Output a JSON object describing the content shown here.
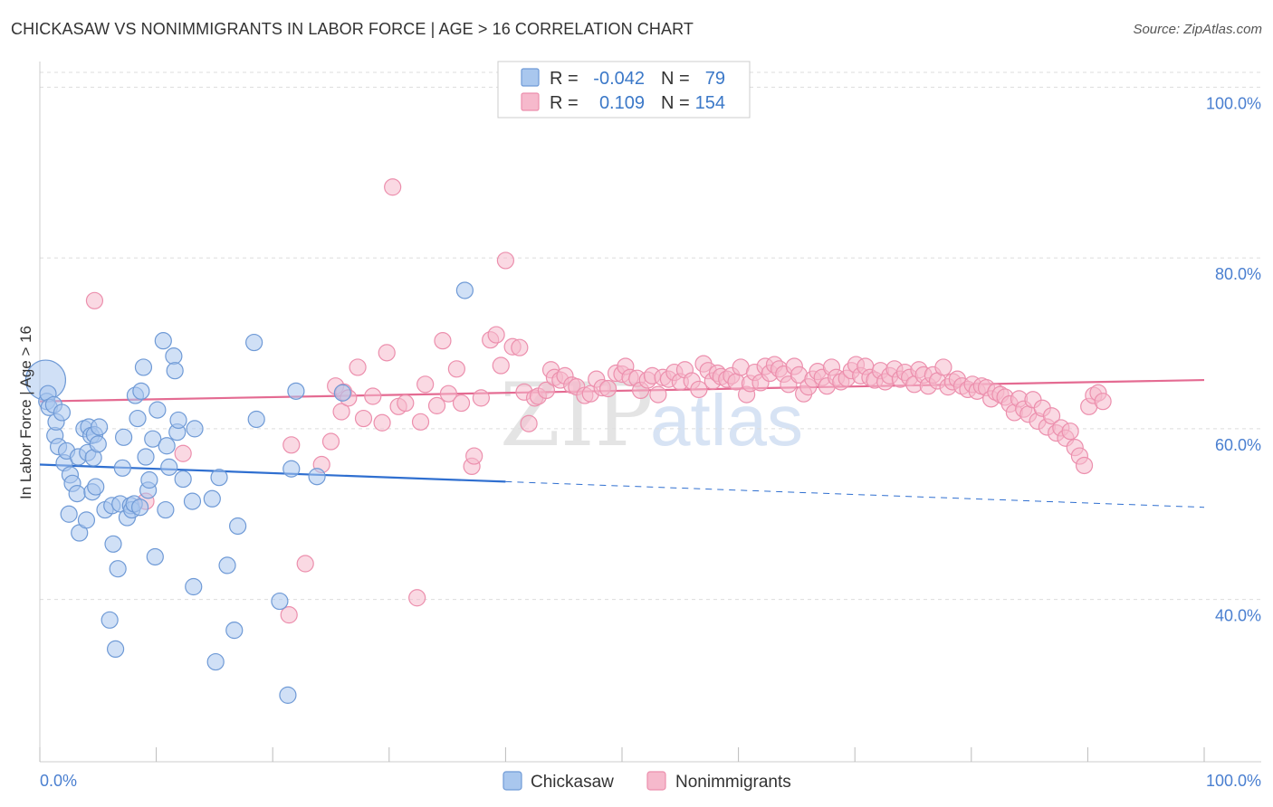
{
  "title": "CHICKASAW VS NONIMMIGRANTS IN LABOR FORCE | AGE > 16 CORRELATION CHART",
  "source": "Source: ZipAtlas.com",
  "watermark": {
    "zip": "ZIP",
    "atlas": "atlas"
  },
  "colors": {
    "blue_fill": "#a9c7ee",
    "blue_stroke": "#6f9ad6",
    "blue_line": "#2f6fd0",
    "pink_fill": "#f6b9cc",
    "pink_stroke": "#ec8fad",
    "pink_line": "#e46b92",
    "axis_text": "#4a7fd0",
    "grid": "#dddddd"
  },
  "legend": {
    "rows": [
      {
        "r_label": "R =",
        "r_value": "-0.042",
        "n_label": "N =",
        "n_value": "79",
        "series": "blue"
      },
      {
        "r_label": "R =",
        "r_value": "0.109",
        "n_label": "N =",
        "n_value": "154",
        "series": "pink"
      }
    ]
  },
  "chart_data": {
    "type": "scatter",
    "ylabel": "In Labor Force | Age > 16",
    "xlabel": "",
    "xlim": [
      0,
      100
    ],
    "ylim": [
      21,
      103
    ],
    "x_tick_labels": {
      "left": "0.0%",
      "right": "100.0%"
    },
    "y_ticks": [
      {
        "value": 40,
        "label": "40.0%"
      },
      {
        "value": 60,
        "label": "60.0%"
      },
      {
        "value": 80,
        "label": "80.0%"
      },
      {
        "value": 100,
        "label": "100.0%"
      }
    ],
    "grid": true,
    "series": [
      {
        "name": "Chickasaw",
        "color": "blue",
        "trend": {
          "x0": 0,
          "y0": 55.8,
          "x1": 40,
          "y1": 53.8,
          "dash_to_x": 100,
          "dash_to_y": 50.8
        },
        "points": [
          [
            0.5,
            65.7
          ],
          [
            0.6,
            63.2
          ],
          [
            0.7,
            64.1
          ],
          [
            0.8,
            62.5
          ],
          [
            1.2,
            62.8
          ],
          [
            1.3,
            59.2
          ],
          [
            1.4,
            60.8
          ],
          [
            1.6,
            57.9
          ],
          [
            1.9,
            61.9
          ],
          [
            2.1,
            56.0
          ],
          [
            2.3,
            57.4
          ],
          [
            2.5,
            50.0
          ],
          [
            2.6,
            54.6
          ],
          [
            2.8,
            53.6
          ],
          [
            3.2,
            52.4
          ],
          [
            3.3,
            56.7
          ],
          [
            3.4,
            47.8
          ],
          [
            3.8,
            60.0
          ],
          [
            4.0,
            49.3
          ],
          [
            4.1,
            57.2
          ],
          [
            4.2,
            60.2
          ],
          [
            4.4,
            59.2
          ],
          [
            4.5,
            52.6
          ],
          [
            4.6,
            56.6
          ],
          [
            4.7,
            59.3
          ],
          [
            4.8,
            53.2
          ],
          [
            5.0,
            58.2
          ],
          [
            5.1,
            60.2
          ],
          [
            5.6,
            50.5
          ],
          [
            6.0,
            37.6
          ],
          [
            6.2,
            51.0
          ],
          [
            6.3,
            46.5
          ],
          [
            6.5,
            34.2
          ],
          [
            6.7,
            43.6
          ],
          [
            6.9,
            51.2
          ],
          [
            7.1,
            55.4
          ],
          [
            7.2,
            59.0
          ],
          [
            7.5,
            49.6
          ],
          [
            7.8,
            51.0
          ],
          [
            7.9,
            50.5
          ],
          [
            8.1,
            51.2
          ],
          [
            8.2,
            63.9
          ],
          [
            8.4,
            61.2
          ],
          [
            8.6,
            50.8
          ],
          [
            8.7,
            64.4
          ],
          [
            8.9,
            67.2
          ],
          [
            9.1,
            56.7
          ],
          [
            9.3,
            52.8
          ],
          [
            9.4,
            54.0
          ],
          [
            9.7,
            58.8
          ],
          [
            9.9,
            45.0
          ],
          [
            10.1,
            62.2
          ],
          [
            10.6,
            70.3
          ],
          [
            10.8,
            50.5
          ],
          [
            10.9,
            58.0
          ],
          [
            11.1,
            55.5
          ],
          [
            11.5,
            68.5
          ],
          [
            11.6,
            66.8
          ],
          [
            11.8,
            59.6
          ],
          [
            11.9,
            61.0
          ],
          [
            12.3,
            54.1
          ],
          [
            13.1,
            51.5
          ],
          [
            13.2,
            41.5
          ],
          [
            13.3,
            60.0
          ],
          [
            14.8,
            51.8
          ],
          [
            15.1,
            32.7
          ],
          [
            15.4,
            54.3
          ],
          [
            16.1,
            44.0
          ],
          [
            16.7,
            36.4
          ],
          [
            17.0,
            48.6
          ],
          [
            18.4,
            70.1
          ],
          [
            18.6,
            61.1
          ],
          [
            20.6,
            39.8
          ],
          [
            21.3,
            28.8
          ],
          [
            21.6,
            55.3
          ],
          [
            22.0,
            64.4
          ],
          [
            23.8,
            54.4
          ],
          [
            26.0,
            64.2
          ],
          [
            36.5,
            76.2
          ]
        ]
      },
      {
        "name": "Nonimmigrants",
        "color": "pink",
        "trend": {
          "x0": 0,
          "y0": 63.2,
          "x1": 100,
          "y1": 65.7
        },
        "points": [
          [
            4.7,
            75.0
          ],
          [
            9.1,
            51.5
          ],
          [
            12.3,
            57.1
          ],
          [
            21.4,
            38.2
          ],
          [
            21.6,
            58.1
          ],
          [
            22.8,
            44.2
          ],
          [
            24.2,
            55.8
          ],
          [
            25.0,
            58.5
          ],
          [
            25.4,
            65.0
          ],
          [
            25.9,
            62.0
          ],
          [
            26.1,
            64.3
          ],
          [
            26.5,
            63.6
          ],
          [
            27.3,
            67.2
          ],
          [
            27.8,
            61.2
          ],
          [
            28.6,
            63.8
          ],
          [
            29.4,
            60.7
          ],
          [
            29.8,
            68.9
          ],
          [
            30.3,
            88.3
          ],
          [
            30.8,
            62.6
          ],
          [
            31.4,
            63.0
          ],
          [
            32.4,
            40.2
          ],
          [
            32.7,
            60.8
          ],
          [
            33.1,
            65.2
          ],
          [
            34.1,
            62.7
          ],
          [
            34.6,
            70.3
          ],
          [
            35.1,
            64.1
          ],
          [
            35.8,
            67.0
          ],
          [
            36.2,
            63.0
          ],
          [
            37.1,
            55.6
          ],
          [
            37.3,
            56.8
          ],
          [
            37.9,
            63.6
          ],
          [
            38.7,
            70.4
          ],
          [
            39.2,
            71.0
          ],
          [
            39.6,
            67.4
          ],
          [
            40.0,
            79.7
          ],
          [
            40.6,
            69.6
          ],
          [
            41.2,
            69.5
          ],
          [
            41.6,
            64.3
          ],
          [
            42.0,
            60.6
          ],
          [
            42.5,
            63.6
          ],
          [
            42.8,
            63.8
          ],
          [
            43.5,
            64.5
          ],
          [
            43.9,
            66.9
          ],
          [
            44.2,
            66.0
          ],
          [
            44.7,
            65.7
          ],
          [
            45.1,
            66.2
          ],
          [
            45.7,
            65.1
          ],
          [
            46.1,
            64.9
          ],
          [
            46.8,
            63.9
          ],
          [
            47.3,
            64.1
          ],
          [
            47.8,
            65.8
          ],
          [
            48.3,
            64.8
          ],
          [
            48.8,
            64.7
          ],
          [
            49.5,
            66.5
          ],
          [
            50.0,
            66.4
          ],
          [
            50.3,
            67.3
          ],
          [
            50.7,
            66.0
          ],
          [
            51.3,
            65.9
          ],
          [
            51.6,
            64.5
          ],
          [
            52.2,
            65.7
          ],
          [
            52.6,
            66.2
          ],
          [
            53.1,
            64.0
          ],
          [
            53.5,
            66.0
          ],
          [
            54.0,
            65.8
          ],
          [
            54.5,
            66.6
          ],
          [
            55.0,
            65.5
          ],
          [
            55.4,
            66.9
          ],
          [
            56.0,
            65.6
          ],
          [
            56.6,
            64.6
          ],
          [
            57.0,
            67.6
          ],
          [
            57.4,
            66.8
          ],
          [
            57.8,
            65.6
          ],
          [
            58.2,
            66.5
          ],
          [
            58.5,
            66.1
          ],
          [
            59.0,
            65.8
          ],
          [
            59.4,
            66.2
          ],
          [
            59.8,
            65.5
          ],
          [
            60.2,
            67.2
          ],
          [
            60.7,
            64.0
          ],
          [
            61.0,
            65.3
          ],
          [
            61.4,
            66.6
          ],
          [
            61.9,
            65.4
          ],
          [
            62.3,
            67.3
          ],
          [
            62.7,
            66.5
          ],
          [
            63.1,
            67.5
          ],
          [
            63.5,
            67.0
          ],
          [
            63.9,
            66.4
          ],
          [
            64.3,
            65.2
          ],
          [
            64.8,
            67.3
          ],
          [
            65.2,
            66.3
          ],
          [
            65.6,
            64.1
          ],
          [
            66.0,
            64.9
          ],
          [
            66.4,
            65.8
          ],
          [
            66.8,
            66.7
          ],
          [
            67.2,
            66.0
          ],
          [
            67.6,
            65.0
          ],
          [
            68.0,
            67.2
          ],
          [
            68.4,
            66.0
          ],
          [
            68.8,
            65.5
          ],
          [
            69.3,
            65.9
          ],
          [
            69.7,
            66.8
          ],
          [
            70.1,
            67.5
          ],
          [
            70.5,
            66.2
          ],
          [
            70.9,
            67.3
          ],
          [
            71.3,
            66.0
          ],
          [
            71.7,
            65.7
          ],
          [
            72.2,
            66.8
          ],
          [
            72.6,
            65.5
          ],
          [
            73.0,
            66.2
          ],
          [
            73.4,
            67.0
          ],
          [
            73.9,
            65.8
          ],
          [
            74.3,
            66.6
          ],
          [
            74.7,
            66.0
          ],
          [
            75.1,
            65.2
          ],
          [
            75.5,
            66.9
          ],
          [
            75.9,
            66.3
          ],
          [
            76.3,
            65.0
          ],
          [
            76.7,
            66.3
          ],
          [
            77.1,
            65.6
          ],
          [
            77.6,
            67.2
          ],
          [
            78.0,
            64.9
          ],
          [
            78.4,
            65.5
          ],
          [
            78.8,
            65.8
          ],
          [
            79.2,
            65.0
          ],
          [
            79.7,
            64.6
          ],
          [
            80.1,
            65.2
          ],
          [
            80.5,
            64.4
          ],
          [
            80.9,
            65.0
          ],
          [
            81.3,
            64.8
          ],
          [
            81.7,
            63.5
          ],
          [
            82.1,
            64.3
          ],
          [
            82.5,
            64.0
          ],
          [
            82.9,
            63.7
          ],
          [
            83.3,
            62.9
          ],
          [
            83.7,
            61.9
          ],
          [
            84.1,
            63.5
          ],
          [
            84.5,
            62.3
          ],
          [
            84.9,
            61.7
          ],
          [
            85.3,
            63.4
          ],
          [
            85.7,
            60.9
          ],
          [
            86.1,
            62.4
          ],
          [
            86.5,
            60.2
          ],
          [
            86.9,
            61.5
          ],
          [
            87.3,
            59.5
          ],
          [
            87.7,
            60.1
          ],
          [
            88.1,
            58.9
          ],
          [
            88.5,
            59.7
          ],
          [
            88.9,
            57.8
          ],
          [
            89.3,
            56.8
          ],
          [
            89.7,
            55.7
          ],
          [
            90.1,
            62.6
          ],
          [
            90.5,
            63.9
          ],
          [
            90.9,
            64.2
          ],
          [
            91.3,
            63.2
          ]
        ]
      }
    ]
  },
  "bottom_legend": [
    {
      "label": "Chickasaw",
      "color": "blue"
    },
    {
      "label": "Nonimmigrants",
      "color": "pink"
    }
  ]
}
